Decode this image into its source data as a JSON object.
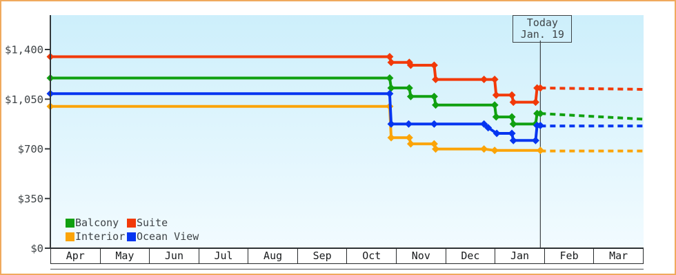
{
  "frame": {
    "border_color": "#f0a95d",
    "plot_bg_top": "#cdeffb",
    "plot_bg_bottom": "#f2fbff",
    "axis_color": "#33383b",
    "text_color": "#3f4447"
  },
  "chart_data": {
    "type": "line",
    "description": "Cruise cabin price history by category, stepped price lines with diamond markers; dotted lines are projected prices after today",
    "x_unit": "fraction of x-axis span (Apr through Mar)",
    "x_axis": {
      "months": [
        "Apr",
        "May",
        "Jun",
        "Jul",
        "Aug",
        "Sep",
        "Oct",
        "Nov",
        "Dec",
        "Jan",
        "Feb",
        "Mar"
      ]
    },
    "y_axis": {
      "max": 1400,
      "ticks": [
        {
          "value": 0,
          "label": "$0"
        },
        {
          "value": 350,
          "label": "$350"
        },
        {
          "value": 700,
          "label": "$700"
        },
        {
          "value": 1050,
          "label": "$1,050"
        },
        {
          "value": 1400,
          "label": "$1,400"
        }
      ]
    },
    "today": {
      "line1": "Today",
      "line2": "Jan. 19",
      "x_frac": 0.826
    },
    "series": [
      {
        "name": "Balcony",
        "color": "#10a010",
        "points": [
          [
            0,
            1199
          ],
          [
            0.572,
            1199
          ],
          [
            0.5745,
            1129
          ],
          [
            0.605,
            1129
          ],
          [
            0.6075,
            1069
          ],
          [
            0.647,
            1069
          ],
          [
            0.6495,
            1009
          ],
          [
            0.749,
            1009
          ],
          [
            0.7515,
            925
          ],
          [
            0.778,
            925
          ],
          [
            0.7805,
            875
          ],
          [
            0.818,
            875
          ],
          [
            0.8205,
            949
          ],
          [
            0.826,
            949
          ]
        ],
        "forecast": [
          [
            0.826,
            949
          ],
          [
            1,
            909
          ]
        ]
      },
      {
        "name": "Suite",
        "color": "#f23908",
        "points": [
          [
            0,
            1349
          ],
          [
            0.572,
            1349
          ],
          [
            0.5745,
            1309
          ],
          [
            0.605,
            1309
          ],
          [
            0.6075,
            1289
          ],
          [
            0.647,
            1289
          ],
          [
            0.6495,
            1189
          ],
          [
            0.731,
            1189
          ],
          [
            0.749,
            1189
          ],
          [
            0.7515,
            1079
          ],
          [
            0.778,
            1079
          ],
          [
            0.7805,
            1029
          ],
          [
            0.818,
            1029
          ],
          [
            0.8205,
            1129
          ],
          [
            0.826,
            1129
          ]
        ],
        "forecast": [
          [
            0.826,
            1129
          ],
          [
            1,
            1119
          ]
        ]
      },
      {
        "name": "Interior",
        "color": "#fba408",
        "points": [
          [
            0,
            999
          ],
          [
            0.572,
            999
          ],
          [
            0.5745,
            779
          ],
          [
            0.605,
            779
          ],
          [
            0.6075,
            735
          ],
          [
            0.647,
            735
          ],
          [
            0.6495,
            699
          ],
          [
            0.731,
            699
          ],
          [
            0.749,
            689
          ],
          [
            0.826,
            689
          ]
        ],
        "forecast": [
          [
            0.826,
            685
          ],
          [
            1,
            685
          ]
        ]
      },
      {
        "name": "Ocean View",
        "color": "#0535f0",
        "points": [
          [
            0,
            1089
          ],
          [
            0.572,
            1089
          ],
          [
            0.5745,
            875
          ],
          [
            0.604,
            875
          ],
          [
            0.647,
            875
          ],
          [
            0.731,
            875
          ],
          [
            0.738,
            849
          ],
          [
            0.7525,
            809
          ],
          [
            0.778,
            809
          ],
          [
            0.7805,
            759
          ],
          [
            0.818,
            759
          ],
          [
            0.8205,
            865
          ],
          [
            0.826,
            865
          ]
        ],
        "forecast": [
          [
            0.826,
            861
          ],
          [
            1,
            861
          ]
        ]
      }
    ],
    "legend": {
      "rows": [
        [
          "Balcony",
          "Suite"
        ],
        [
          "Interior",
          "Ocean View"
        ]
      ]
    }
  }
}
